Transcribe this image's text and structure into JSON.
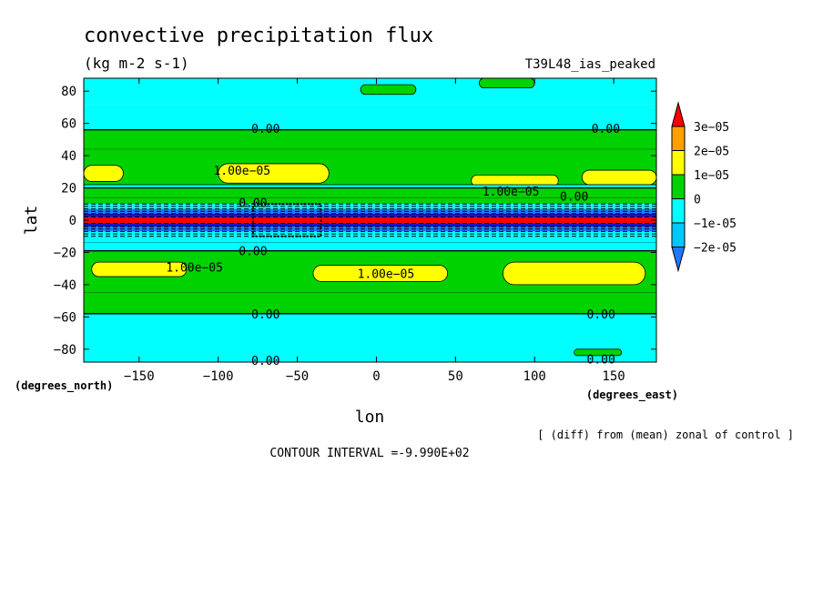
{
  "chart_data": {
    "type": "heatmap",
    "title": "convective precipitation flux",
    "subtitle": "(kg m-2 s-1)",
    "experiment": "T39L48_ias_peaked",
    "xlabel": "lon",
    "ylabel": "lat",
    "x_units": "(degrees_east)",
    "y_units": "(degrees_north)",
    "xlim": [
      -185,
      177
    ],
    "ylim": [
      -88,
      88
    ],
    "x_ticks": [
      -150,
      -100,
      -50,
      0,
      50,
      100,
      150
    ],
    "y_ticks": [
      80,
      60,
      40,
      20,
      0,
      -20,
      -40,
      -60,
      -80
    ],
    "note": "[ (diff) from (mean) zonal of control ]",
    "contour_interval": "CONTOUR INTERVAL =-9.990E+02",
    "colorbar": {
      "labels": [
        "3e-05",
        "2e-05",
        "1e-05",
        "0",
        "-1e-05",
        "-2e-05"
      ],
      "colors": [
        "#1e78ff",
        "#00c8ff",
        "#00ffff",
        "#00d200",
        "#ffff00",
        "#ffa000",
        "#ff0000"
      ]
    },
    "contour_labels": [
      {
        "text": "0.00",
        "lon": -70,
        "lat": 57
      },
      {
        "text": "0.00",
        "lon": 145,
        "lat": 57
      },
      {
        "text": "1.00e-05",
        "lon": -85,
        "lat": 31
      },
      {
        "text": "1.00e-05",
        "lon": 85,
        "lat": 18
      },
      {
        "text": "0.00",
        "lon": -78,
        "lat": 11
      },
      {
        "text": "0.00",
        "lon": 125,
        "lat": 15
      },
      {
        "text": "0.00",
        "lon": -78,
        "lat": -19
      },
      {
        "text": "1.00e-05",
        "lon": -115,
        "lat": -29
      },
      {
        "text": "1.00e-05",
        "lon": 6,
        "lat": -33
      },
      {
        "text": "0.00",
        "lon": -70,
        "lat": -58
      },
      {
        "text": "0.00",
        "lon": 142,
        "lat": -58
      },
      {
        "text": "0.00",
        "lon": -70,
        "lat": -87
      },
      {
        "text": "0.00",
        "lon": 142,
        "lat": -86
      }
    ],
    "zonal_bands": [
      {
        "lat_min": 72,
        "lat_max": 88,
        "value": -1e-05
      },
      {
        "lat_min": 56,
        "lat_max": 72,
        "value": -1e-05
      },
      {
        "lat_min": 20,
        "lat_max": 56,
        "value": 0
      },
      {
        "lat_min": 10,
        "lat_max": 20,
        "value": 0
      },
      {
        "lat_min": 7,
        "lat_max": 10,
        "value": -1e-05
      },
      {
        "lat_min": 4,
        "lat_max": 7,
        "value": -2e-05
      },
      {
        "lat_min": 2,
        "lat_max": 4,
        "value": -2.5e-05
      },
      {
        "lat_min": -2,
        "lat_max": 2,
        "value": 3e-05
      },
      {
        "lat_min": -4,
        "lat_max": -2,
        "value": -2.5e-05
      },
      {
        "lat_min": -7,
        "lat_max": -4,
        "value": -2e-05
      },
      {
        "lat_min": -10,
        "lat_max": -7,
        "value": -1e-05
      },
      {
        "lat_min": -19,
        "lat_max": -10,
        "value": -1e-05
      },
      {
        "lat_min": -58,
        "lat_max": -19,
        "value": 0
      },
      {
        "lat_min": -88,
        "lat_max": -58,
        "value": -1e-05
      }
    ],
    "patches": [
      {
        "lon_min": -185,
        "lon_max": -160,
        "lat_min": 24,
        "lat_max": 34,
        "value": 1e-05
      },
      {
        "lon_min": -100,
        "lon_max": -30,
        "lat_min": 23,
        "lat_max": 35,
        "value": 1e-05
      },
      {
        "lon_min": 60,
        "lon_max": 115,
        "lat_min": 21,
        "lat_max": 28,
        "value": 1e-05
      },
      {
        "lon_min": 130,
        "lon_max": 177,
        "lat_min": 22,
        "lat_max": 31,
        "value": 1e-05
      },
      {
        "lon_min": -180,
        "lon_max": -120,
        "lat_min": -35,
        "lat_max": -26,
        "value": 1e-05
      },
      {
        "lon_min": -40,
        "lon_max": 45,
        "lat_min": -38,
        "lat_max": -28,
        "value": 1e-05
      },
      {
        "lon_min": 80,
        "lon_max": 170,
        "lat_min": -40,
        "lat_max": -26,
        "value": 1e-05
      },
      {
        "lon_min": -10,
        "lon_max": 25,
        "lat_min": 78,
        "lat_max": 84,
        "value": 0
      },
      {
        "lon_min": 65,
        "lon_max": 100,
        "lat_min": 82,
        "lat_max": 88,
        "value": 0
      },
      {
        "lon_min": -185,
        "lon_max": 177,
        "lat_min": 20,
        "lat_max": 22,
        "value": -1e-05
      },
      {
        "lon_min": 125,
        "lon_max": 155,
        "lat_min": -84,
        "lat_max": -80,
        "value": 0
      }
    ]
  }
}
